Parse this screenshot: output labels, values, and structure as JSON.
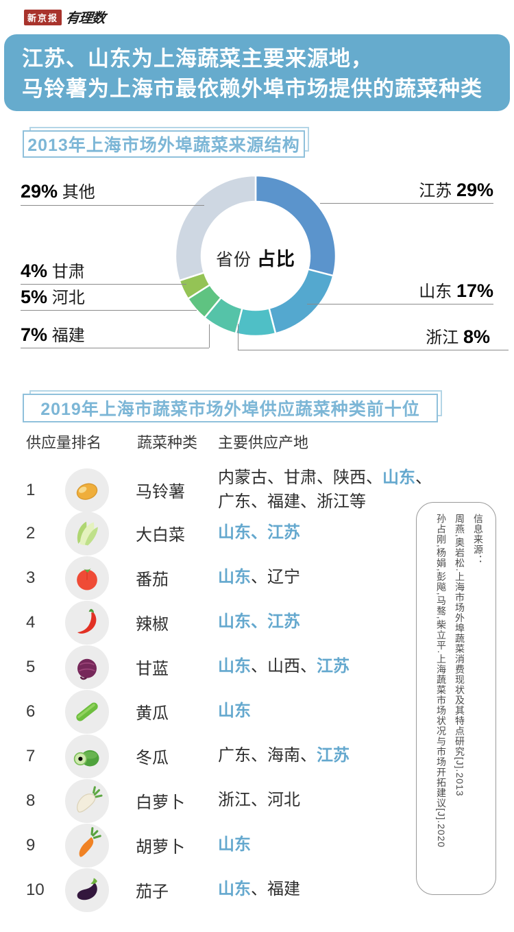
{
  "brand": {
    "boxed_logo": "新京报",
    "script_logo": "有理数"
  },
  "banner": {
    "line1": "江苏、山东为上海蔬菜主要来源地，",
    "line2": "马铃薯为上海市最依赖外埠市场提供的蔬菜种类",
    "bg_color": "#66ABCD"
  },
  "section1": {
    "title": "2013年上海市场外埠蔬菜来源结构"
  },
  "section2": {
    "title": "2019年上海市蔬菜市场外埠供应蔬菜种类前十位"
  },
  "chart_data": {
    "type": "pie",
    "donut": true,
    "title": "2013年上海市场外埠蔬菜来源结构",
    "center_label": {
      "normal": "省份",
      "bold": "占比"
    },
    "start_angle_deg": 0,
    "direction": "clockwise",
    "series": [
      {
        "name": "江苏",
        "value": 29,
        "pct": "29%",
        "color": "#5B94CC",
        "label_side": "right"
      },
      {
        "name": "山东",
        "value": 17,
        "pct": "17%",
        "color": "#54A8CF",
        "label_side": "right"
      },
      {
        "name": "浙江",
        "value": 8,
        "pct": "8%",
        "color": "#4FBFC6",
        "label_side": "right"
      },
      {
        "name": "福建",
        "value": 7,
        "pct": "7%",
        "color": "#55C3A8",
        "label_side": "left"
      },
      {
        "name": "河北",
        "value": 5,
        "pct": "5%",
        "color": "#5FC381",
        "label_side": "left"
      },
      {
        "name": "甘肃",
        "value": 4,
        "pct": "4%",
        "color": "#94C355",
        "label_side": "left"
      },
      {
        "name": "其他",
        "value": 29,
        "pct": "29%",
        "color": "#CED7E2",
        "label_side": "left"
      }
    ]
  },
  "table": {
    "headers": [
      "供应量排名",
      "蔬菜种类",
      "主要供应产地"
    ],
    "highlight_color": "#64A8CE",
    "rows": [
      {
        "rank": "1",
        "icon": "potato-icon",
        "name": "马铃薯",
        "origin": [
          {
            "t": "内蒙古、甘肃、陕西、",
            "h": false
          },
          {
            "t": "山东",
            "h": true
          },
          {
            "t": "、广东、福建、浙江等",
            "h": false
          }
        ]
      },
      {
        "rank": "2",
        "icon": "napa-cabbage-icon",
        "name": "大白菜",
        "origin": [
          {
            "t": "山东、江苏",
            "h": true
          }
        ]
      },
      {
        "rank": "3",
        "icon": "tomato-icon",
        "name": "番茄",
        "origin": [
          {
            "t": "山东",
            "h": true
          },
          {
            "t": "、辽宁",
            "h": false
          }
        ]
      },
      {
        "rank": "4",
        "icon": "chili-icon",
        "name": "辣椒",
        "origin": [
          {
            "t": "山东、江苏",
            "h": true
          }
        ]
      },
      {
        "rank": "5",
        "icon": "purple-cabbage-icon",
        "name": "甘蓝",
        "origin": [
          {
            "t": "山东",
            "h": true
          },
          {
            "t": "、山西、",
            "h": false
          },
          {
            "t": "江苏",
            "h": true
          }
        ]
      },
      {
        "rank": "6",
        "icon": "cucumber-icon",
        "name": "黄瓜",
        "origin": [
          {
            "t": "山东",
            "h": true
          }
        ]
      },
      {
        "rank": "7",
        "icon": "winter-melon-icon",
        "name": "冬瓜",
        "origin": [
          {
            "t": "广东、海南、",
            "h": false
          },
          {
            "t": "江苏",
            "h": true
          }
        ]
      },
      {
        "rank": "8",
        "icon": "white-radish-icon",
        "name": "白萝卜",
        "origin": [
          {
            "t": "浙江、河北",
            "h": false
          }
        ]
      },
      {
        "rank": "9",
        "icon": "carrot-icon",
        "name": "胡萝卜",
        "origin": [
          {
            "t": "山东",
            "h": true
          }
        ]
      },
      {
        "rank": "10",
        "icon": "eggplant-icon",
        "name": "茄子",
        "origin": [
          {
            "t": "山东",
            "h": true
          },
          {
            "t": "、福建",
            "h": false
          }
        ]
      }
    ]
  },
  "source": {
    "label": "信息来源：",
    "refs": [
      "周燕,奥岩松.上海市场外埠蔬菜消费现状及其特点研究[J].2013",
      "孙占刚,杨娟,彭飚,马骜,柴立平.上海蔬菜市场状况与市场开拓建议[J].2020"
    ]
  }
}
